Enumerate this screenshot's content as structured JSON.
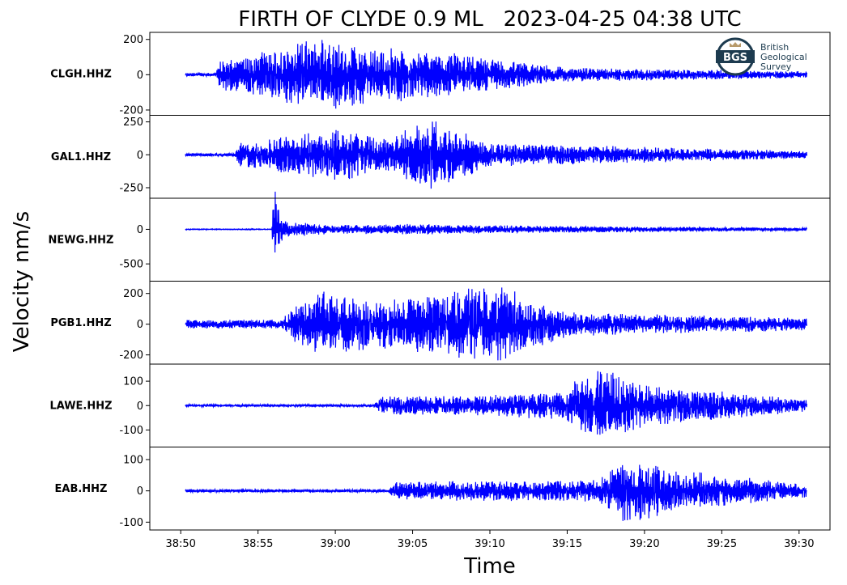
{
  "chart_data": {
    "type": "line",
    "title": "FIRTH OF CLYDE 0.9 ML   2023-04-25 04:38 UTC",
    "xlabel": "Time",
    "ylabel": "Velocity nm/s",
    "x_ticks": [
      "38:50",
      "38:55",
      "39:00",
      "39:05",
      "39:10",
      "39:15",
      "39:20",
      "39:25",
      "39:30"
    ],
    "xlim": [
      "38:48",
      "39:32"
    ],
    "data_span": [
      "38:50.3",
      "39:30.5"
    ],
    "line_color": "#0000ff",
    "logo": {
      "lines": [
        "British",
        "Geological",
        "Survey"
      ],
      "mark": "BGS",
      "color": "#1d3b4f"
    },
    "panels": [
      {
        "name": "CLGH.HHZ",
        "ylim": [
          -230,
          240
        ],
        "y_ticks": [
          200,
          0,
          -200
        ],
        "y_tick_labels": [
          "200",
          "0",
          "-200"
        ],
        "noise_amplitude": 10,
        "envelope": [
          {
            "t": "38:52.3",
            "amp": 12
          },
          {
            "t": "38:52.5",
            "amp": 90
          },
          {
            "t": "38:54.0",
            "amp": 100
          },
          {
            "t": "38:58.8",
            "amp": 220
          },
          {
            "t": "39:02.0",
            "amp": 170
          },
          {
            "t": "39:08.0",
            "amp": 120
          },
          {
            "t": "39:15.0",
            "amp": 40
          },
          {
            "t": "39:30.5",
            "amp": 20
          }
        ]
      },
      {
        "name": "GAL1.HHZ",
        "ylim": [
          -330,
          300
        ],
        "y_ticks": [
          250,
          0,
          -250
        ],
        "y_tick_labels": [
          "250",
          "0",
          "-250"
        ],
        "noise_amplitude": 12,
        "envelope": [
          {
            "t": "38:53.5",
            "amp": 15
          },
          {
            "t": "38:53.8",
            "amp": 100
          },
          {
            "t": "39:00.5",
            "amp": 200
          },
          {
            "t": "39:03.0",
            "amp": 120
          },
          {
            "t": "39:06.3",
            "amp": 280
          },
          {
            "t": "39:10.0",
            "amp": 90
          },
          {
            "t": "39:30.5",
            "amp": 30
          }
        ]
      },
      {
        "name": "NEWG.HHZ",
        "ylim": [
          -750,
          450
        ],
        "y_ticks": [
          0,
          -500
        ],
        "y_tick_labels": [
          "0",
          "-500"
        ],
        "noise_amplitude": 6,
        "envelope": [
          {
            "t": "38:55.9",
            "amp": 8
          },
          {
            "t": "38:56.0",
            "amp": 700
          },
          {
            "t": "38:56.6",
            "amp": 120
          },
          {
            "t": "39:00.0",
            "amp": 60
          },
          {
            "t": "39:05.0",
            "amp": 80
          },
          {
            "t": "39:10.0",
            "amp": 60
          },
          {
            "t": "39:30.5",
            "amp": 20
          }
        ]
      },
      {
        "name": "PGB1.HHZ",
        "ylim": [
          -260,
          280
        ],
        "y_ticks": [
          200,
          0,
          -200
        ],
        "y_tick_labels": [
          "200",
          "0",
          "-200"
        ],
        "noise_amplitude": 30,
        "envelope": [
          {
            "t": "38:56.5",
            "amp": 30
          },
          {
            "t": "38:57.5",
            "amp": 130
          },
          {
            "t": "38:59.0",
            "amp": 220
          },
          {
            "t": "39:03.0",
            "amp": 160
          },
          {
            "t": "39:10.6",
            "amp": 260
          },
          {
            "t": "39:15.0",
            "amp": 80
          },
          {
            "t": "39:30.5",
            "amp": 40
          }
        ]
      },
      {
        "name": "LAWE.HHZ",
        "ylim": [
          -170,
          170
        ],
        "y_ticks": [
          100,
          0,
          -100
        ],
        "y_tick_labels": [
          "100",
          "0",
          "-100"
        ],
        "noise_amplitude": 5,
        "envelope": [
          {
            "t": "39:02.5",
            "amp": 8
          },
          {
            "t": "39:03.0",
            "amp": 40
          },
          {
            "t": "39:08.0",
            "amp": 40
          },
          {
            "t": "39:14.5",
            "amp": 60
          },
          {
            "t": "39:17.0",
            "amp": 160
          },
          {
            "t": "39:20.0",
            "amp": 90
          },
          {
            "t": "39:30.5",
            "amp": 25
          }
        ]
      },
      {
        "name": "EAB.HHZ",
        "ylim": [
          -125,
          140
        ],
        "y_ticks": [
          100,
          0,
          -100
        ],
        "y_tick_labels": [
          "100",
          "0",
          "-100"
        ],
        "noise_amplitude": 5,
        "envelope": [
          {
            "t": "39:03.5",
            "amp": 8
          },
          {
            "t": "39:04.0",
            "amp": 30
          },
          {
            "t": "39:17.0",
            "amp": 35
          },
          {
            "t": "39:18.5",
            "amp": 110
          },
          {
            "t": "39:22.0",
            "amp": 70
          },
          {
            "t": "39:30.5",
            "amp": 20
          }
        ]
      }
    ]
  }
}
